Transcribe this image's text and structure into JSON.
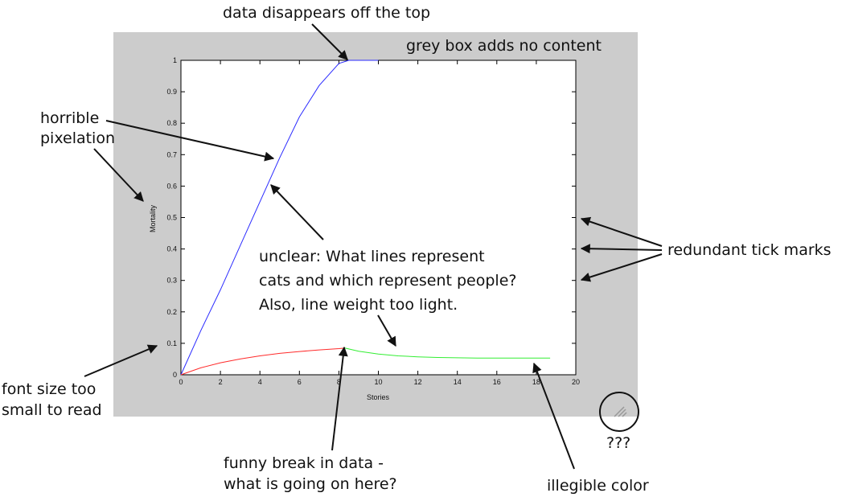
{
  "chart_data": {
    "type": "line",
    "xlabel": "Stories",
    "ylabel": "Mortality",
    "xlim": [
      0,
      20
    ],
    "ylim": [
      0,
      1
    ],
    "xticks": [
      0,
      2,
      4,
      6,
      8,
      10,
      12,
      14,
      16,
      18,
      20
    ],
    "yticks": [
      0,
      0.1,
      0.2,
      0.3,
      0.4,
      0.5,
      0.6,
      0.7,
      0.8,
      0.9,
      1
    ],
    "grid": false,
    "legend": "none",
    "series": [
      {
        "color": "#2b2bff",
        "x": [
          0,
          1,
          2,
          3,
          4,
          5,
          6,
          7,
          8,
          8.5,
          9,
          10
        ],
        "y": [
          0,
          0.14,
          0.27,
          0.41,
          0.55,
          0.69,
          0.82,
          0.92,
          0.99,
          1.0,
          1.0,
          1.0
        ]
      },
      {
        "color": "#ff2b2b",
        "x": [
          0,
          1,
          2,
          3,
          4,
          5,
          6,
          7,
          8,
          8.3
        ],
        "y": [
          0,
          0.022,
          0.038,
          0.05,
          0.06,
          0.068,
          0.074,
          0.079,
          0.083,
          0.085
        ]
      },
      {
        "color": "#33ee33",
        "x": [
          8.3,
          9,
          10,
          11,
          12,
          13,
          14,
          15,
          16,
          17,
          18,
          18.7
        ],
        "y": [
          0.085,
          0.075,
          0.066,
          0.06,
          0.057,
          0.055,
          0.054,
          0.053,
          0.053,
          0.053,
          0.053,
          0.053
        ]
      }
    ]
  },
  "annotations": {
    "top": "data disappears off the top",
    "grey_box": "grey box adds no content",
    "pixelation_line1": "horrible",
    "pixelation_line2": "pixelation",
    "unclear_line1": "unclear: What lines represent",
    "unclear_line2": "cats and which represent people?",
    "unclear_line3": "Also, line weight too light.",
    "redundant": "redundant tick marks",
    "font_line1": "font size too",
    "font_line2": "small to read",
    "break_line1": "funny break in data -",
    "break_line2": "what is going on here?",
    "color": "illegible color",
    "question": "???"
  },
  "colors": {
    "grey_box": "#cccccc",
    "plot_bg": "#ffffff",
    "arrow": "#111111"
  }
}
